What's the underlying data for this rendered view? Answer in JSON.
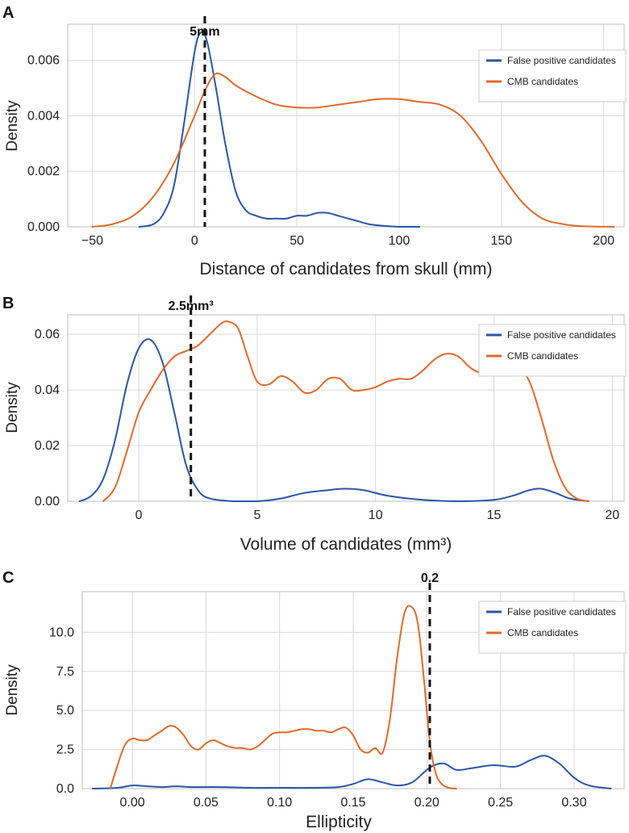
{
  "colors": {
    "fp": "#2a56a6",
    "cmb": "#e06a2a"
  },
  "chart_data": [
    {
      "type": "line",
      "panel": "A",
      "xlabel": "Distance of candidates from skull (mm)",
      "ylabel": "Density",
      "xlim": [
        -62,
        210
      ],
      "ylim": [
        0,
        0.0073
      ],
      "xticks": [
        -50,
        0,
        50,
        100,
        150,
        200
      ],
      "xtick_labels": [
        "−50",
        "0",
        "50",
        "100",
        "150",
        "200"
      ],
      "yticks": [
        0,
        0.002,
        0.004,
        0.006
      ],
      "ytick_labels": [
        "0.000",
        "0.002",
        "0.004",
        "0.006"
      ],
      "threshold": {
        "x": 5,
        "label": "5mm"
      },
      "legend": [
        "False positive candidates",
        "CMB candidates"
      ],
      "series": [
        {
          "name": "False positive candidates",
          "color_key": "fp",
          "x": [
            -27,
            -20,
            -15,
            -10,
            -5,
            0,
            3,
            6,
            10,
            15,
            20,
            25,
            30,
            35,
            40,
            45,
            50,
            55,
            60,
            65,
            70,
            75,
            80,
            85,
            90,
            100,
            110
          ],
          "y": [
            0.0,
            0.0001,
            0.0005,
            0.0015,
            0.0038,
            0.0063,
            0.007,
            0.0067,
            0.0052,
            0.003,
            0.0013,
            0.0006,
            0.0004,
            0.0003,
            0.0003,
            0.0003,
            0.0004,
            0.0004,
            0.0005,
            0.0005,
            0.0004,
            0.0003,
            0.0002,
            0.0001,
            5e-05,
            0.0,
            0.0
          ]
        },
        {
          "name": "CMB candidates",
          "color_key": "cmb",
          "x": [
            -50,
            -40,
            -30,
            -20,
            -10,
            0,
            5,
            10,
            15,
            20,
            30,
            40,
            50,
            60,
            70,
            80,
            90,
            100,
            110,
            120,
            130,
            140,
            150,
            160,
            170,
            180,
            190,
            205
          ],
          "y": [
            0.0,
            0.0001,
            0.0004,
            0.0011,
            0.0023,
            0.004,
            0.0049,
            0.0055,
            0.0054,
            0.0051,
            0.0047,
            0.0044,
            0.0043,
            0.0043,
            0.0044,
            0.0045,
            0.0046,
            0.0046,
            0.0045,
            0.0044,
            0.004,
            0.0031,
            0.0019,
            0.0009,
            0.0003,
            0.0001,
            2e-05,
            0.0
          ]
        }
      ]
    },
    {
      "type": "line",
      "panel": "B",
      "xlabel": "Volume of candidates (mm³)",
      "ylabel": "Density",
      "xlim": [
        -3,
        20.5
      ],
      "ylim": [
        0,
        0.067
      ],
      "xticks": [
        0,
        5,
        10,
        15,
        20
      ],
      "xtick_labels": [
        "0",
        "5",
        "10",
        "15",
        "20"
      ],
      "yticks": [
        0,
        0.02,
        0.04,
        0.06
      ],
      "ytick_labels": [
        "0.00",
        "0.02",
        "0.04",
        "0.06"
      ],
      "threshold": {
        "x": 2.2,
        "label": "2.5mm³"
      },
      "legend": [
        "False positive candidates",
        "CMB candidates"
      ],
      "series": [
        {
          "name": "False positive candidates",
          "color_key": "fp",
          "x": [
            -2.5,
            -2,
            -1.5,
            -1,
            -0.5,
            0,
            0.5,
            1,
            1.5,
            2,
            2.5,
            3,
            4,
            5,
            6,
            7,
            8,
            8.7,
            9.5,
            10.5,
            12,
            13.5,
            15,
            15.8,
            16.5,
            17,
            17.6,
            18.2,
            19
          ],
          "y": [
            0.0,
            0.002,
            0.008,
            0.022,
            0.042,
            0.055,
            0.058,
            0.05,
            0.032,
            0.013,
            0.004,
            0.001,
            0.0,
            0.0,
            0.001,
            0.003,
            0.004,
            0.0045,
            0.004,
            0.002,
            0.0005,
            0.0,
            0.0005,
            0.002,
            0.004,
            0.0045,
            0.003,
            0.001,
            0.0
          ]
        },
        {
          "name": "CMB candidates",
          "color_key": "cmb",
          "x": [
            -1.5,
            -1,
            -0.5,
            0,
            0.5,
            1,
            1.5,
            2,
            2.5,
            3,
            3.5,
            3.8,
            4.2,
            4.6,
            5,
            5.5,
            6,
            6.5,
            7,
            7.5,
            8,
            8.5,
            9,
            9.5,
            10,
            10.5,
            11,
            11.5,
            12,
            12.5,
            13,
            13.5,
            14,
            14.5,
            15,
            15.5,
            16,
            16.5,
            17,
            17.5,
            18,
            18.5,
            19
          ],
          "y": [
            0.0,
            0.005,
            0.018,
            0.032,
            0.04,
            0.047,
            0.052,
            0.054,
            0.056,
            0.06,
            0.064,
            0.0645,
            0.062,
            0.052,
            0.043,
            0.042,
            0.045,
            0.043,
            0.039,
            0.04,
            0.044,
            0.044,
            0.04,
            0.04,
            0.041,
            0.043,
            0.044,
            0.044,
            0.047,
            0.051,
            0.053,
            0.052,
            0.048,
            0.046,
            0.046,
            0.047,
            0.048,
            0.043,
            0.03,
            0.015,
            0.005,
            0.001,
            0.0
          ]
        }
      ]
    },
    {
      "type": "line",
      "panel": "C",
      "xlabel": "Ellipticity",
      "ylabel": "Density",
      "xlim": [
        -0.034,
        0.334
      ],
      "ylim": [
        0,
        12.6
      ],
      "xticks": [
        0,
        0.05,
        0.1,
        0.15,
        0.2,
        0.25,
        0.3
      ],
      "xtick_labels": [
        "0.00",
        "0.05",
        "0.10",
        "0.15",
        "0.20",
        "0.25",
        "0.30"
      ],
      "yticks": [
        0,
        2.5,
        5.0,
        7.5,
        10.0
      ],
      "ytick_labels": [
        "0.0",
        "2.5",
        "5.0",
        "7.5",
        "10.0"
      ],
      "threshold": {
        "x": 0.202,
        "label": "0.2"
      },
      "legend": [
        "False positive candidates",
        "CMB candidates"
      ],
      "series": [
        {
          "name": "False positive candidates",
          "color_key": "fp",
          "x": [
            -0.027,
            -0.01,
            0,
            0.01,
            0.02,
            0.03,
            0.04,
            0.06,
            0.08,
            0.1,
            0.12,
            0.14,
            0.15,
            0.16,
            0.17,
            0.18,
            0.19,
            0.2,
            0.205,
            0.212,
            0.22,
            0.23,
            0.245,
            0.26,
            0.27,
            0.28,
            0.29,
            0.3,
            0.31,
            0.325
          ],
          "y": [
            0.0,
            0.05,
            0.2,
            0.15,
            0.1,
            0.15,
            0.1,
            0.1,
            0.05,
            0.05,
            0.05,
            0.1,
            0.3,
            0.6,
            0.4,
            0.2,
            0.4,
            1.2,
            1.5,
            1.6,
            1.2,
            1.3,
            1.5,
            1.4,
            1.8,
            2.1,
            1.6,
            0.7,
            0.2,
            0.0
          ]
        },
        {
          "name": "CMB candidates",
          "color_key": "cmb",
          "x": [
            -0.015,
            -0.01,
            -0.005,
            0,
            0.005,
            0.01,
            0.015,
            0.02,
            0.025,
            0.03,
            0.035,
            0.04,
            0.045,
            0.05,
            0.055,
            0.06,
            0.065,
            0.07,
            0.075,
            0.08,
            0.085,
            0.09,
            0.095,
            0.1,
            0.105,
            0.11,
            0.115,
            0.12,
            0.125,
            0.13,
            0.135,
            0.14,
            0.145,
            0.15,
            0.155,
            0.16,
            0.165,
            0.17,
            0.175,
            0.18,
            0.185,
            0.19,
            0.194,
            0.198,
            0.202,
            0.206,
            0.21,
            0.215,
            0.22
          ],
          "y": [
            0.0,
            1.5,
            2.8,
            3.2,
            3.1,
            3.1,
            3.4,
            3.7,
            4.0,
            3.9,
            3.4,
            2.7,
            2.5,
            2.9,
            3.1,
            2.9,
            2.7,
            2.6,
            2.6,
            2.5,
            2.7,
            3.1,
            3.5,
            3.6,
            3.6,
            3.7,
            3.8,
            3.8,
            3.7,
            3.7,
            3.6,
            3.8,
            3.9,
            3.4,
            2.5,
            2.3,
            2.6,
            2.3,
            4.5,
            8.5,
            11.3,
            11.6,
            10.5,
            7.0,
            3.0,
            1.0,
            0.3,
            0.05,
            0.0
          ]
        }
      ]
    }
  ]
}
